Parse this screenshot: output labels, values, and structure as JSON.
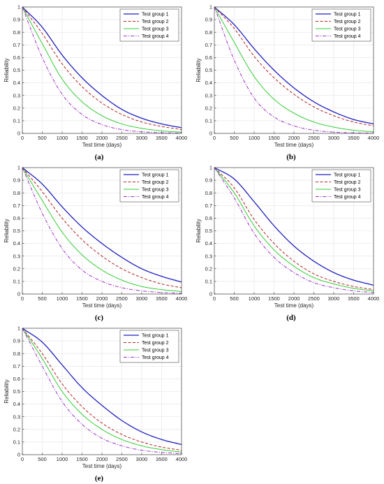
{
  "figure": {
    "background": "#ffffff"
  },
  "chart_data": [
    {
      "panel": "(a)",
      "type": "line",
      "xlabel": "Test time (days)",
      "ylabel": "Reliability",
      "xlim": [
        0,
        4000
      ],
      "ylim": [
        0,
        1
      ],
      "xticks": [
        0,
        500,
        1000,
        1500,
        2000,
        2500,
        3000,
        3500,
        4000
      ],
      "yticks": [
        0,
        0.1,
        0.2,
        0.3,
        0.4,
        0.5,
        0.6,
        0.7,
        0.8,
        0.9,
        1
      ],
      "grid": true,
      "legend_position": "top-right",
      "series": [
        {
          "name": "Test group 1",
          "color": "#1f1fbf",
          "style": "solid",
          "x": [
            0,
            500,
            1000,
            1500,
            2000,
            2500,
            3000,
            3500,
            4000
          ],
          "y": [
            1.0,
            0.84,
            0.62,
            0.44,
            0.3,
            0.19,
            0.12,
            0.075,
            0.045
          ]
        },
        {
          "name": "Test group 2",
          "color": "#b22222",
          "style": "dashed",
          "x": [
            0,
            500,
            1000,
            1500,
            2000,
            2500,
            3000,
            3500,
            4000
          ],
          "y": [
            1.0,
            0.79,
            0.55,
            0.37,
            0.24,
            0.15,
            0.09,
            0.055,
            0.03
          ]
        },
        {
          "name": "Test group 3",
          "color": "#33cc33",
          "style": "solid",
          "x": [
            0,
            500,
            1000,
            1500,
            2000,
            2500,
            3000,
            3500,
            4000
          ],
          "y": [
            1.0,
            0.71,
            0.43,
            0.25,
            0.14,
            0.075,
            0.04,
            0.02,
            0.01
          ]
        },
        {
          "name": "Test group 4",
          "color": "#9b30c8",
          "style": "dashdot",
          "x": [
            0,
            500,
            1000,
            1500,
            2000,
            2500,
            3000,
            3500,
            4000
          ],
          "y": [
            1.0,
            0.6,
            0.31,
            0.15,
            0.07,
            0.03,
            0.013,
            0.005,
            0.002
          ]
        }
      ]
    },
    {
      "panel": "(b)",
      "type": "line",
      "xlabel": "Test time (days)",
      "ylabel": "Reliability",
      "xlim": [
        0,
        4000
      ],
      "ylim": [
        0,
        1
      ],
      "xticks": [
        0,
        500,
        1000,
        1500,
        2000,
        2500,
        3000,
        3500,
        4000
      ],
      "yticks": [
        0,
        0.1,
        0.2,
        0.3,
        0.4,
        0.5,
        0.6,
        0.7,
        0.8,
        0.9,
        1
      ],
      "grid": true,
      "legend_position": "top-right",
      "series": [
        {
          "name": "Test group 1",
          "color": "#1f1fbf",
          "style": "solid",
          "x": [
            0,
            500,
            1000,
            1500,
            2000,
            2500,
            3000,
            3500,
            4000
          ],
          "y": [
            1.0,
            0.86,
            0.67,
            0.5,
            0.36,
            0.25,
            0.17,
            0.11,
            0.075
          ]
        },
        {
          "name": "Test group 2",
          "color": "#b22222",
          "style": "dashed",
          "x": [
            0,
            500,
            1000,
            1500,
            2000,
            2500,
            3000,
            3500,
            4000
          ],
          "y": [
            1.0,
            0.83,
            0.61,
            0.44,
            0.31,
            0.21,
            0.14,
            0.09,
            0.06
          ]
        },
        {
          "name": "Test group 3",
          "color": "#33cc33",
          "style": "solid",
          "x": [
            0,
            500,
            1000,
            1500,
            2000,
            2500,
            3000,
            3500,
            4000
          ],
          "y": [
            1.0,
            0.72,
            0.45,
            0.27,
            0.16,
            0.09,
            0.05,
            0.025,
            0.012
          ]
        },
        {
          "name": "Test group 4",
          "color": "#9b30c8",
          "style": "dashdot",
          "x": [
            0,
            500,
            1000,
            1500,
            2000,
            2500,
            3000,
            3500,
            4000
          ],
          "y": [
            1.0,
            0.58,
            0.28,
            0.13,
            0.06,
            0.025,
            0.01,
            0.004,
            0.002
          ]
        }
      ]
    },
    {
      "panel": "(c)",
      "type": "line",
      "xlabel": "Test time (days)",
      "ylabel": "Reliability",
      "xlim": [
        0,
        4000
      ],
      "ylim": [
        0,
        1
      ],
      "xticks": [
        0,
        500,
        1000,
        1500,
        2000,
        2500,
        3000,
        3500,
        4000
      ],
      "yticks": [
        0,
        0.1,
        0.2,
        0.3,
        0.4,
        0.5,
        0.6,
        0.7,
        0.8,
        0.9,
        1
      ],
      "grid": true,
      "legend_position": "top-right",
      "series": [
        {
          "name": "Test group 1",
          "color": "#1f1fbf",
          "style": "solid",
          "x": [
            0,
            500,
            1000,
            1500,
            2000,
            2500,
            3000,
            3500,
            4000
          ],
          "y": [
            1.0,
            0.87,
            0.69,
            0.53,
            0.4,
            0.29,
            0.2,
            0.14,
            0.095
          ]
        },
        {
          "name": "Test group 2",
          "color": "#b22222",
          "style": "dashed",
          "x": [
            0,
            500,
            1000,
            1500,
            2000,
            2500,
            3000,
            3500,
            4000
          ],
          "y": [
            1.0,
            0.81,
            0.6,
            0.43,
            0.3,
            0.2,
            0.13,
            0.08,
            0.05
          ]
        },
        {
          "name": "Test group 3",
          "color": "#33cc33",
          "style": "solid",
          "x": [
            0,
            500,
            1000,
            1500,
            2000,
            2500,
            3000,
            3500,
            4000
          ],
          "y": [
            1.0,
            0.74,
            0.49,
            0.31,
            0.19,
            0.11,
            0.06,
            0.035,
            0.02
          ]
        },
        {
          "name": "Test group 4",
          "color": "#9b30c8",
          "style": "dashdot",
          "x": [
            0,
            500,
            1000,
            1500,
            2000,
            2500,
            3000,
            3500,
            4000
          ],
          "y": [
            1.0,
            0.64,
            0.36,
            0.19,
            0.1,
            0.05,
            0.025,
            0.012,
            0.005
          ]
        }
      ]
    },
    {
      "panel": "(d)",
      "type": "line",
      "xlabel": "Test time (days)",
      "ylabel": "Reliability",
      "xlim": [
        0,
        4000
      ],
      "ylim": [
        0,
        1
      ],
      "xticks": [
        0,
        500,
        1000,
        1500,
        2000,
        2500,
        3000,
        3500,
        4000
      ],
      "yticks": [
        0,
        0.1,
        0.2,
        0.3,
        0.4,
        0.5,
        0.6,
        0.7,
        0.8,
        0.9,
        1
      ],
      "grid": true,
      "legend_position": "top-right",
      "series": [
        {
          "name": "Test group 1",
          "color": "#1f1fbf",
          "style": "solid",
          "x": [
            0,
            500,
            1000,
            1500,
            2000,
            2500,
            3000,
            3500,
            4000
          ],
          "y": [
            1.0,
            0.91,
            0.73,
            0.54,
            0.38,
            0.26,
            0.17,
            0.11,
            0.07
          ]
        },
        {
          "name": "Test group 2",
          "color": "#b22222",
          "style": "dashed",
          "x": [
            0,
            500,
            1000,
            1500,
            2000,
            2500,
            3000,
            3500,
            4000
          ],
          "y": [
            1.0,
            0.84,
            0.59,
            0.4,
            0.26,
            0.16,
            0.1,
            0.06,
            0.035
          ]
        },
        {
          "name": "Test group 3",
          "color": "#33cc33",
          "style": "solid",
          "x": [
            0,
            500,
            1000,
            1500,
            2000,
            2500,
            3000,
            3500,
            4000
          ],
          "y": [
            1.0,
            0.8,
            0.54,
            0.35,
            0.22,
            0.13,
            0.08,
            0.045,
            0.025
          ]
        },
        {
          "name": "Test group 4",
          "color": "#9b30c8",
          "style": "dashdot",
          "x": [
            0,
            500,
            1000,
            1500,
            2000,
            2500,
            3000,
            3500,
            4000
          ],
          "y": [
            1.0,
            0.76,
            0.48,
            0.29,
            0.17,
            0.09,
            0.05,
            0.025,
            0.012
          ]
        }
      ]
    },
    {
      "panel": "(e)",
      "type": "line",
      "xlabel": "Test time (days)",
      "ylabel": "Reliability",
      "xlim": [
        0,
        4000
      ],
      "ylim": [
        0,
        1
      ],
      "xticks": [
        0,
        500,
        1000,
        1500,
        2000,
        2500,
        3000,
        3500,
        4000
      ],
      "yticks": [
        0,
        0.1,
        0.2,
        0.3,
        0.4,
        0.5,
        0.6,
        0.7,
        0.8,
        0.9,
        1
      ],
      "grid": true,
      "legend_position": "top-right",
      "series": [
        {
          "name": "Test group 1",
          "color": "#1f1fbf",
          "style": "solid",
          "x": [
            0,
            500,
            1000,
            1500,
            2000,
            2500,
            3000,
            3500,
            4000
          ],
          "y": [
            1.0,
            0.89,
            0.71,
            0.53,
            0.39,
            0.27,
            0.18,
            0.12,
            0.08
          ]
        },
        {
          "name": "Test group 2",
          "color": "#b22222",
          "style": "dashed",
          "x": [
            0,
            500,
            1000,
            1500,
            2000,
            2500,
            3000,
            3500,
            4000
          ],
          "y": [
            1.0,
            0.8,
            0.56,
            0.38,
            0.25,
            0.16,
            0.1,
            0.06,
            0.035
          ]
        },
        {
          "name": "Test group 3",
          "color": "#33cc33",
          "style": "solid",
          "x": [
            0,
            500,
            1000,
            1500,
            2000,
            2500,
            3000,
            3500,
            4000
          ],
          "y": [
            1.0,
            0.76,
            0.5,
            0.32,
            0.2,
            0.12,
            0.07,
            0.04,
            0.02
          ]
        },
        {
          "name": "Test group 4",
          "color": "#9b30c8",
          "style": "dashdot",
          "x": [
            0,
            500,
            1000,
            1500,
            2000,
            2500,
            3000,
            3500,
            4000
          ],
          "y": [
            1.0,
            0.7,
            0.42,
            0.24,
            0.13,
            0.07,
            0.035,
            0.018,
            0.008
          ]
        }
      ]
    }
  ]
}
